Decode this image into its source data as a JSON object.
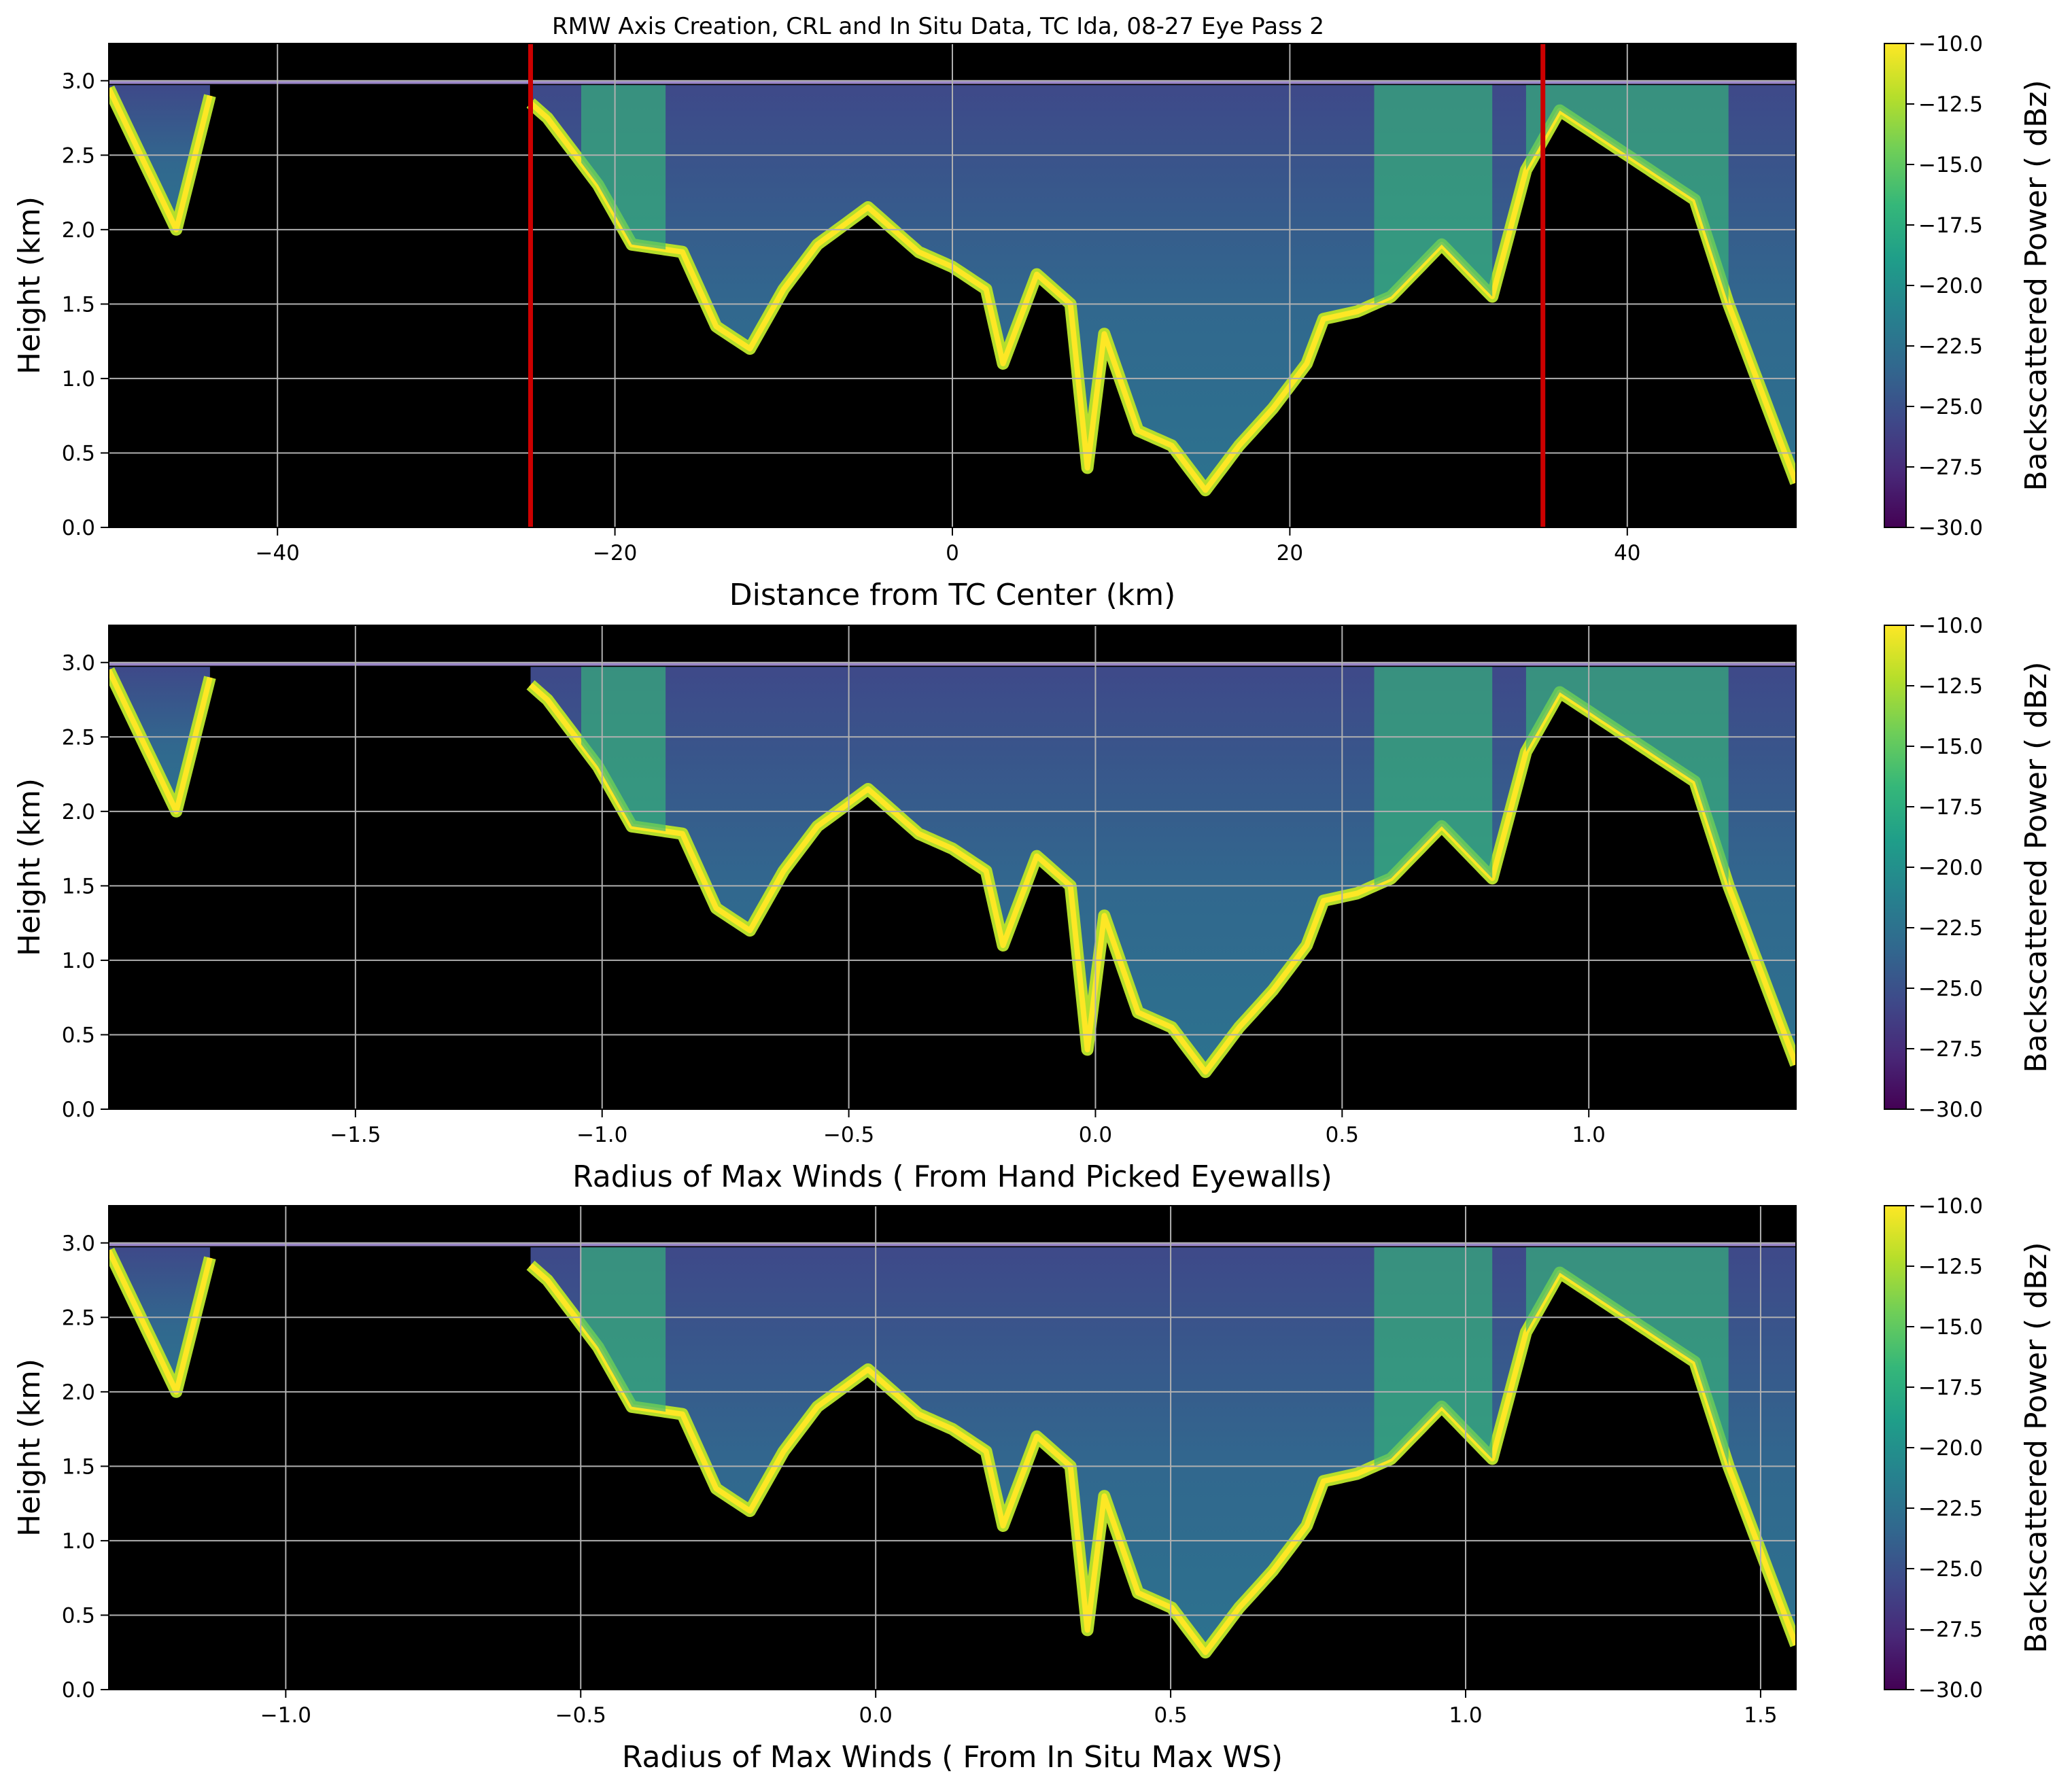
{
  "figure": {
    "title": "RMW Axis Creation, CRL and In Situ Data, TC Ida, 08-27 Eye Pass 2"
  },
  "colors": {
    "background": "#000000",
    "grid": "#b0b0b0",
    "markers": "#cc0000",
    "colormap": [
      "#440154",
      "#482878",
      "#3e4989",
      "#31688e",
      "#26828e",
      "#1f9e89",
      "#35b779",
      "#6ece58",
      "#b5de2b",
      "#fde725"
    ]
  },
  "chart_data": [
    {
      "type": "heatmap",
      "xlabel": "Distance from TC Center (km)",
      "ylabel": "Height (km)",
      "xlim": [
        -50,
        50
      ],
      "ylim": [
        0,
        3.25
      ],
      "xticks": [
        -40,
        -20,
        0,
        20,
        40
      ],
      "xtick_labels": [
        "−40",
        "−20",
        "0",
        "20",
        "40"
      ],
      "yticks": [
        0,
        0.5,
        1.0,
        1.5,
        2.0,
        2.5,
        3.0
      ],
      "ytick_labels": [
        "0.0",
        "0.5",
        "1.0",
        "1.5",
        "2.0",
        "2.5",
        "3.0"
      ],
      "grid": true,
      "vertical_lines": [
        -25,
        35
      ],
      "colorbar": {
        "label": "Backscattered Power ( dBz)",
        "range": [
          -30,
          -10
        ],
        "ticks": [
          -30,
          -27.5,
          -25,
          -22.5,
          -20,
          -17.5,
          -15,
          -12.5,
          -10
        ],
        "tick_labels": [
          "−30.0",
          "−27.5",
          "−25.0",
          "−22.5",
          "−20.0",
          "−17.5",
          "−15.0",
          "−12.5",
          "−10.0"
        ]
      },
      "data_extent_x": [
        -50,
        50
      ],
      "gaps": [
        [
          -44,
          -25
        ]
      ],
      "cloud_base_km": [
        [
          -50,
          2.95
        ],
        [
          -46,
          2.0
        ],
        [
          -44,
          2.9
        ],
        [
          -26,
          2.95
        ],
        [
          -24,
          2.75
        ],
        [
          -21,
          2.3
        ],
        [
          -19,
          1.9
        ],
        [
          -16,
          1.85
        ],
        [
          -14,
          1.35
        ],
        [
          -12,
          1.2
        ],
        [
          -10,
          1.6
        ],
        [
          -8,
          1.9
        ],
        [
          -5,
          2.15
        ],
        [
          -2,
          1.85
        ],
        [
          0,
          1.75
        ],
        [
          2,
          1.6
        ],
        [
          3,
          1.1
        ],
        [
          5,
          1.7
        ],
        [
          7,
          1.5
        ],
        [
          8,
          0.4
        ],
        [
          9,
          1.3
        ],
        [
          11,
          0.65
        ],
        [
          13,
          0.55
        ],
        [
          15,
          0.25
        ],
        [
          17,
          0.55
        ],
        [
          19,
          0.8
        ],
        [
          21,
          1.1
        ],
        [
          22,
          1.4
        ],
        [
          24,
          1.45
        ],
        [
          26,
          1.55
        ],
        [
          29,
          1.9
        ],
        [
          32,
          1.55
        ],
        [
          34,
          2.4
        ],
        [
          36,
          2.8
        ],
        [
          40,
          2.5
        ],
        [
          44,
          2.2
        ],
        [
          46,
          1.5
        ],
        [
          48,
          0.9
        ],
        [
          50,
          0.3
        ]
      ]
    },
    {
      "type": "heatmap",
      "xlabel": "Radius of Max Winds ( From Hand Picked Eyewalls)",
      "ylabel": "Height (km)",
      "xlim": [
        -2.0,
        1.42
      ],
      "ylim": [
        0,
        3.25
      ],
      "xticks": [
        -1.5,
        -1.0,
        -0.5,
        0.0,
        0.5,
        1.0
      ],
      "xtick_labels": [
        "−1.5",
        "−1.0",
        "−0.5",
        "0.0",
        "0.5",
        "1.0"
      ],
      "yticks": [
        0,
        0.5,
        1.0,
        1.5,
        2.0,
        2.5,
        3.0
      ],
      "ytick_labels": [
        "0.0",
        "0.5",
        "1.0",
        "1.5",
        "2.0",
        "2.5",
        "3.0"
      ],
      "grid": true,
      "colorbar": {
        "label": "Backscattered Power ( dBz)",
        "range": [
          -30,
          -10
        ],
        "ticks": [
          -30,
          -27.5,
          -25,
          -22.5,
          -20,
          -17.5,
          -15,
          -12.5,
          -10
        ],
        "tick_labels": [
          "−30.0",
          "−27.5",
          "−25.0",
          "−22.5",
          "−20.0",
          "−17.5",
          "−15.0",
          "−12.5",
          "−10.0"
        ]
      },
      "data_extent_x": [
        -50,
        50
      ],
      "gaps": [
        [
          -44,
          -25
        ]
      ],
      "cloud_base_km": [
        [
          -50,
          2.95
        ],
        [
          -46,
          2.0
        ],
        [
          -44,
          2.9
        ],
        [
          -26,
          2.95
        ],
        [
          -24,
          2.75
        ],
        [
          -21,
          2.3
        ],
        [
          -19,
          1.9
        ],
        [
          -16,
          1.85
        ],
        [
          -14,
          1.35
        ],
        [
          -12,
          1.2
        ],
        [
          -10,
          1.6
        ],
        [
          -8,
          1.9
        ],
        [
          -5,
          2.15
        ],
        [
          -2,
          1.85
        ],
        [
          0,
          1.75
        ],
        [
          2,
          1.6
        ],
        [
          3,
          1.1
        ],
        [
          5,
          1.7
        ],
        [
          7,
          1.5
        ],
        [
          8,
          0.4
        ],
        [
          9,
          1.3
        ],
        [
          11,
          0.65
        ],
        [
          13,
          0.55
        ],
        [
          15,
          0.25
        ],
        [
          17,
          0.55
        ],
        [
          19,
          0.8
        ],
        [
          21,
          1.1
        ],
        [
          22,
          1.4
        ],
        [
          24,
          1.45
        ],
        [
          26,
          1.55
        ],
        [
          29,
          1.9
        ],
        [
          32,
          1.55
        ],
        [
          34,
          2.4
        ],
        [
          36,
          2.8
        ],
        [
          40,
          2.5
        ],
        [
          44,
          2.2
        ],
        [
          46,
          1.5
        ],
        [
          48,
          0.9
        ],
        [
          50,
          0.3
        ]
      ]
    },
    {
      "type": "heatmap",
      "xlabel": "Radius of Max Winds ( From In Situ Max WS)",
      "ylabel": "Height (km)",
      "xlim": [
        -1.3,
        1.56
      ],
      "ylim": [
        0,
        3.25
      ],
      "xticks": [
        -1.0,
        -0.5,
        0.0,
        0.5,
        1.0,
        1.5
      ],
      "xtick_labels": [
        "−1.0",
        "−0.5",
        "0.0",
        "0.5",
        "1.0",
        "1.5"
      ],
      "yticks": [
        0,
        0.5,
        1.0,
        1.5,
        2.0,
        2.5,
        3.0
      ],
      "ytick_labels": [
        "0.0",
        "0.5",
        "1.0",
        "1.5",
        "2.0",
        "2.5",
        "3.0"
      ],
      "grid": true,
      "colorbar": {
        "label": "Backscattered Power ( dBz)",
        "range": [
          -30,
          -10
        ],
        "ticks": [
          -30,
          -27.5,
          -25,
          -22.5,
          -20,
          -17.5,
          -15,
          -12.5,
          -10
        ],
        "tick_labels": [
          "−30.0",
          "−27.5",
          "−25.0",
          "−22.5",
          "−20.0",
          "−17.5",
          "−15.0",
          "−12.5",
          "−10.0"
        ]
      },
      "data_extent_x": [
        -50,
        50
      ],
      "gaps": [
        [
          -44,
          -25
        ]
      ],
      "cloud_base_km": [
        [
          -50,
          2.95
        ],
        [
          -46,
          2.0
        ],
        [
          -44,
          2.9
        ],
        [
          -26,
          2.95
        ],
        [
          -24,
          2.75
        ],
        [
          -21,
          2.3
        ],
        [
          -19,
          1.9
        ],
        [
          -16,
          1.85
        ],
        [
          -14,
          1.35
        ],
        [
          -12,
          1.2
        ],
        [
          -10,
          1.6
        ],
        [
          -8,
          1.9
        ],
        [
          -5,
          2.15
        ],
        [
          -2,
          1.85
        ],
        [
          0,
          1.75
        ],
        [
          2,
          1.6
        ],
        [
          3,
          1.1
        ],
        [
          5,
          1.7
        ],
        [
          7,
          1.5
        ],
        [
          8,
          0.4
        ],
        [
          9,
          1.3
        ],
        [
          11,
          0.65
        ],
        [
          13,
          0.55
        ],
        [
          15,
          0.25
        ],
        [
          17,
          0.55
        ],
        [
          19,
          0.8
        ],
        [
          21,
          1.1
        ],
        [
          22,
          1.4
        ],
        [
          24,
          1.45
        ],
        [
          26,
          1.55
        ],
        [
          29,
          1.9
        ],
        [
          32,
          1.55
        ],
        [
          34,
          2.4
        ],
        [
          36,
          2.8
        ],
        [
          40,
          2.5
        ],
        [
          44,
          2.2
        ],
        [
          46,
          1.5
        ],
        [
          48,
          0.9
        ],
        [
          50,
          0.3
        ]
      ]
    }
  ]
}
